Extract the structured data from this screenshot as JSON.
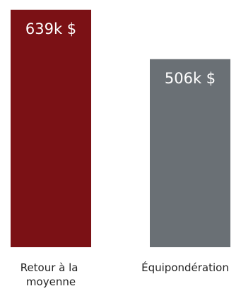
{
  "chart_data": {
    "type": "bar",
    "categories": [
      "Retour à la moyenne",
      "Équipondération"
    ],
    "category_lines": [
      [
        "Retour à la",
        "moyenne"
      ],
      [
        "Équipondération"
      ]
    ],
    "values": [
      639,
      506
    ],
    "value_labels": [
      "639k $",
      "506k $"
    ],
    "unit": "k $",
    "colors": [
      "#7b1115",
      "#6a7075"
    ],
    "title": "",
    "xlabel": "",
    "ylabel": "",
    "ylim": [
      0,
      650
    ],
    "grid": false,
    "legend": "none"
  }
}
